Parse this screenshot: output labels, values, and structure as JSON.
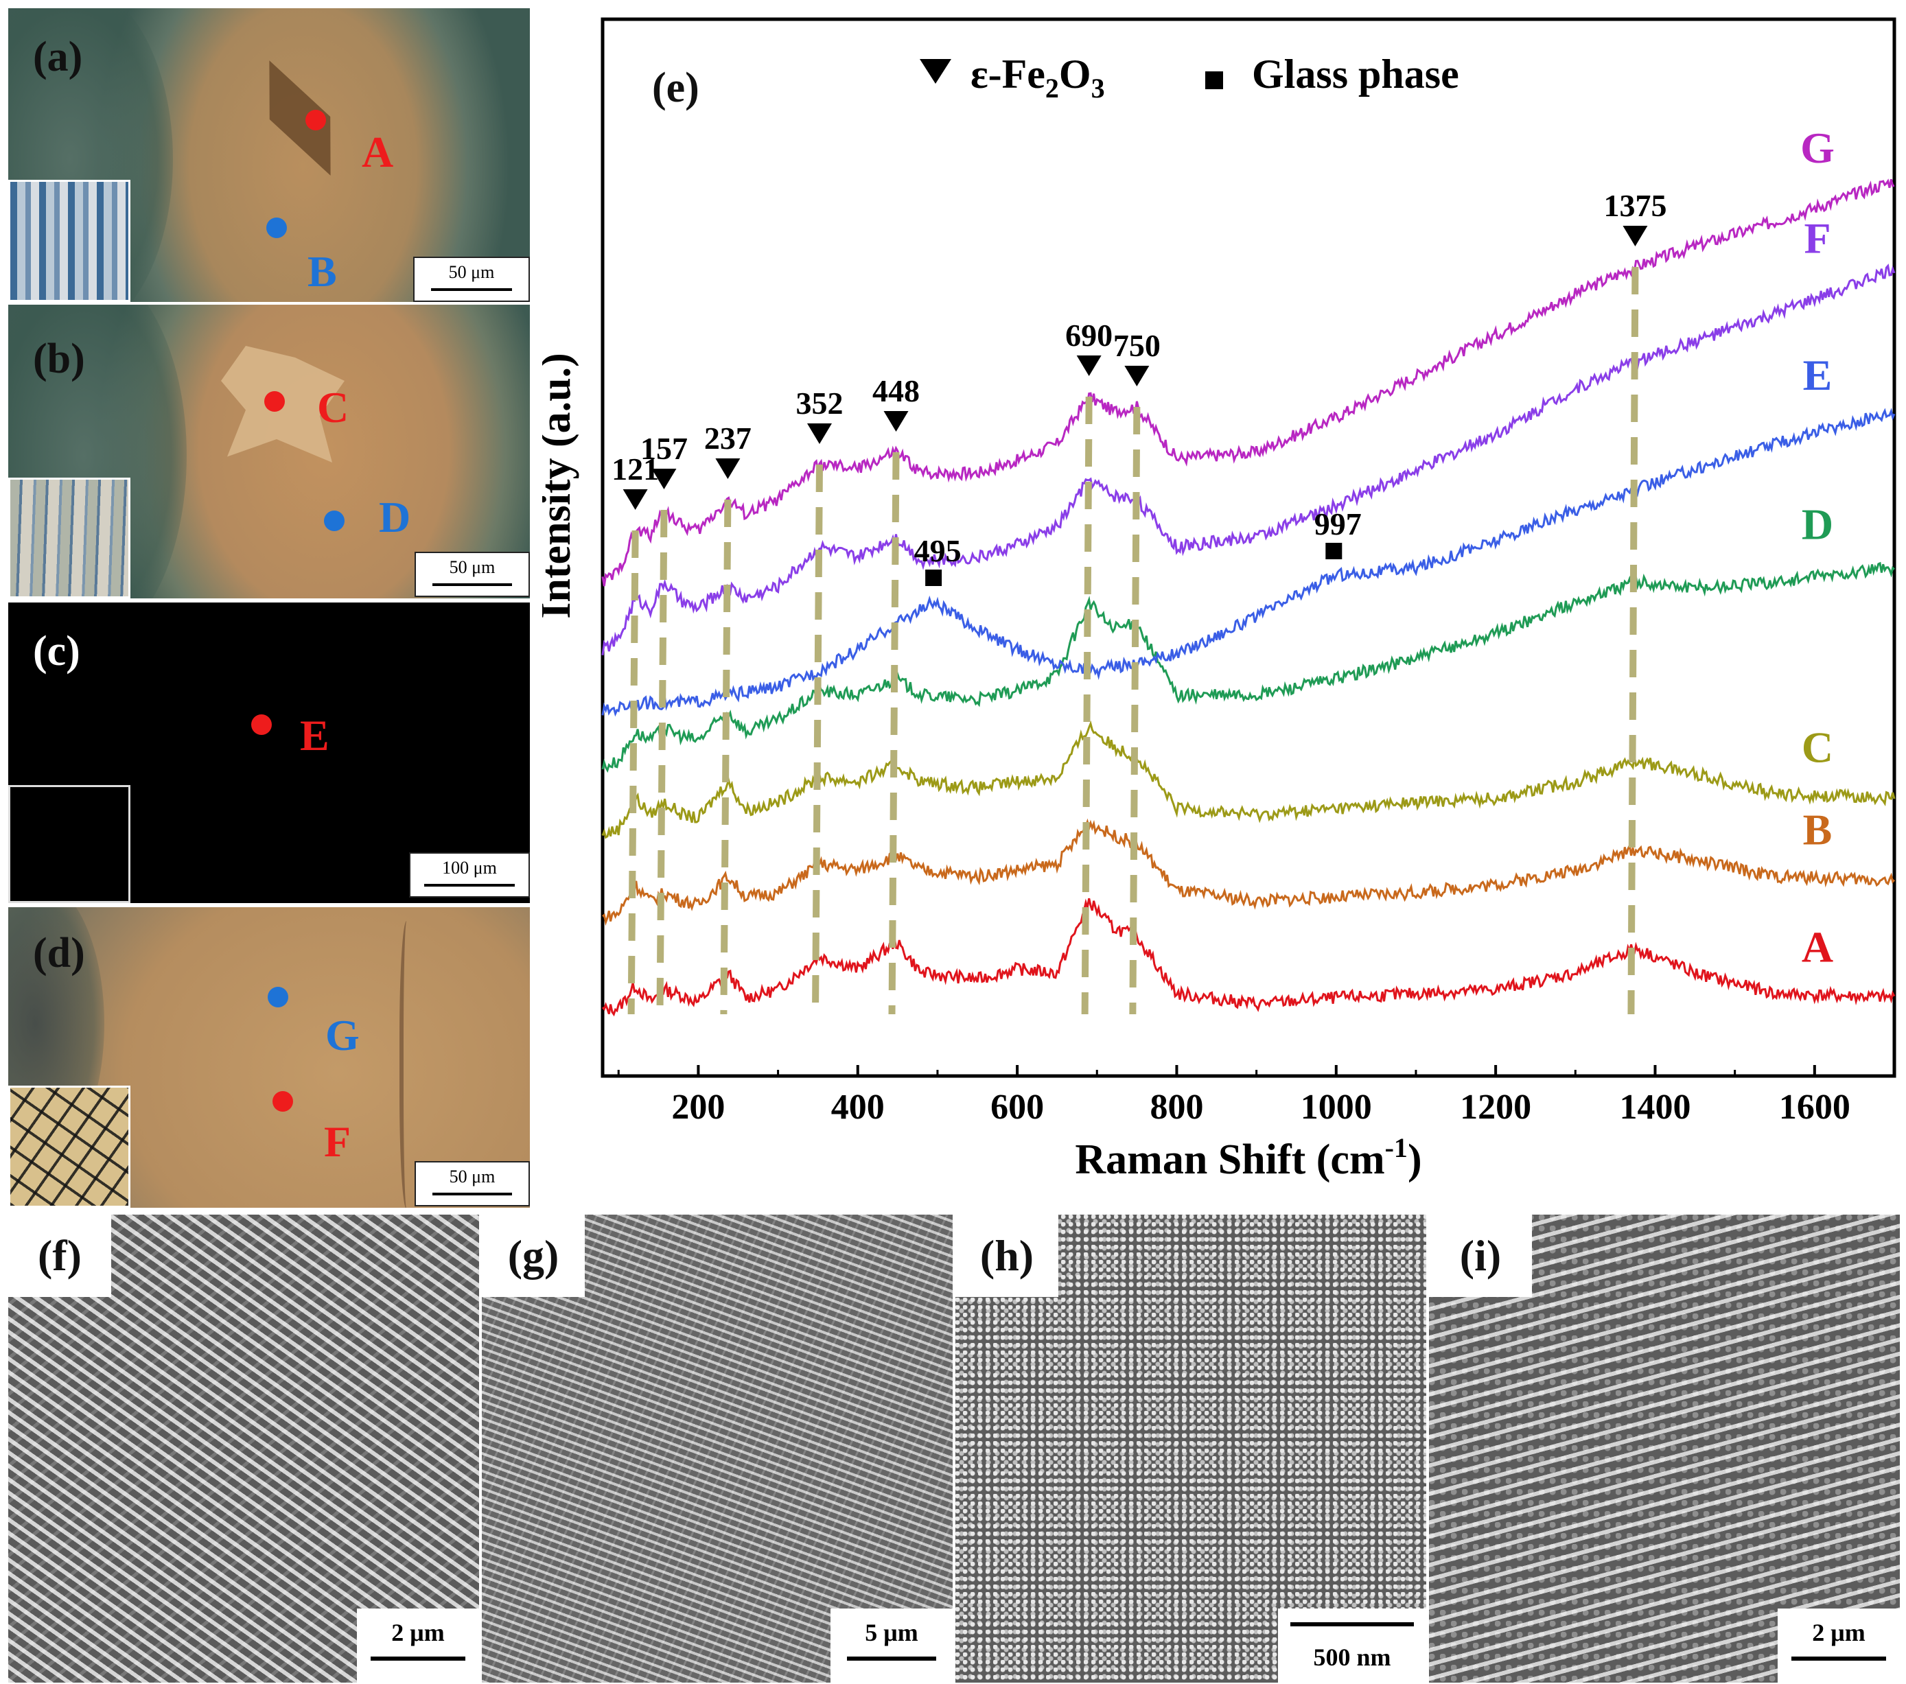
{
  "panels": {
    "a": {
      "label": "(a)",
      "scale": "50 μm",
      "points": [
        {
          "id": "A",
          "color": "#ee1c1c"
        },
        {
          "id": "B",
          "color": "#1e73d6"
        }
      ]
    },
    "b": {
      "label": "(b)",
      "scale": "50 μm",
      "points": [
        {
          "id": "C",
          "color": "#ee1c1c"
        },
        {
          "id": "D",
          "color": "#1e73d6"
        }
      ]
    },
    "c": {
      "label": "(c)",
      "scale": "100 μm",
      "points": [
        {
          "id": "E",
          "color": "#ee1c1c"
        }
      ]
    },
    "d": {
      "label": "(d)",
      "scale": "50 μm",
      "points": [
        {
          "id": "G",
          "color": "#1e73d6"
        },
        {
          "id": "F",
          "color": "#ee1c1c"
        }
      ]
    },
    "f": {
      "label": "(f)",
      "scale": "2 μm"
    },
    "g": {
      "label": "(g)",
      "scale": "5 μm"
    },
    "h": {
      "label": "(h)",
      "scale": "500 nm"
    },
    "i": {
      "label": "(i)",
      "scale": "2 μm"
    }
  },
  "chart_data": {
    "type": "line",
    "panel_label": "(e)",
    "xlabel": "Raman Shift (cm",
    "xlabel_sup": "-1",
    "xlabel_end": ")",
    "ylabel": "Intensity (a.u.)",
    "xlim": [
      80,
      1700
    ],
    "xticks": [
      200,
      400,
      600,
      800,
      1000,
      1200,
      1400,
      1600
    ],
    "legend": {
      "position": "top-center",
      "items": [
        {
          "marker": "triangle-down",
          "text": "ε-Fe",
          "sub": "2",
          "text2": "O",
          "sub2": "3"
        },
        {
          "marker": "square",
          "text": "Glass phase"
        }
      ]
    },
    "peaks_fe2o3": [
      121,
      157,
      237,
      352,
      448,
      690,
      750,
      1375
    ],
    "peaks_glass": [
      495,
      997
    ],
    "series": [
      {
        "name": "A",
        "color": "#e0141c",
        "points": [
          [
            80,
            0.02
          ],
          [
            100,
            0.03
          ],
          [
            121,
            0.14
          ],
          [
            140,
            0.06
          ],
          [
            157,
            0.12
          ],
          [
            180,
            0.09
          ],
          [
            200,
            0.06
          ],
          [
            237,
            0.2
          ],
          [
            260,
            0.08
          ],
          [
            300,
            0.12
          ],
          [
            352,
            0.28
          ],
          [
            400,
            0.22
          ],
          [
            448,
            0.35
          ],
          [
            480,
            0.2
          ],
          [
            550,
            0.17
          ],
          [
            600,
            0.22
          ],
          [
            650,
            0.2
          ],
          [
            690,
            0.55
          ],
          [
            720,
            0.42
          ],
          [
            750,
            0.38
          ],
          [
            800,
            0.1
          ],
          [
            900,
            0.05
          ],
          [
            1000,
            0.08
          ],
          [
            1100,
            0.1
          ],
          [
            1200,
            0.12
          ],
          [
            1300,
            0.2
          ],
          [
            1375,
            0.32
          ],
          [
            1450,
            0.2
          ],
          [
            1550,
            0.1
          ],
          [
            1700,
            0.08
          ]
        ]
      },
      {
        "name": "B",
        "color": "#c9691c",
        "points": [
          [
            80,
            0.02
          ],
          [
            100,
            0.04
          ],
          [
            121,
            0.18
          ],
          [
            140,
            0.1
          ],
          [
            157,
            0.14
          ],
          [
            180,
            0.1
          ],
          [
            200,
            0.08
          ],
          [
            237,
            0.22
          ],
          [
            260,
            0.12
          ],
          [
            300,
            0.14
          ],
          [
            352,
            0.28
          ],
          [
            400,
            0.25
          ],
          [
            448,
            0.32
          ],
          [
            480,
            0.25
          ],
          [
            550,
            0.22
          ],
          [
            600,
            0.25
          ],
          [
            650,
            0.28
          ],
          [
            690,
            0.48
          ],
          [
            720,
            0.42
          ],
          [
            750,
            0.38
          ],
          [
            800,
            0.15
          ],
          [
            900,
            0.1
          ],
          [
            1000,
            0.12
          ],
          [
            1100,
            0.14
          ],
          [
            1200,
            0.18
          ],
          [
            1300,
            0.25
          ],
          [
            1375,
            0.35
          ],
          [
            1450,
            0.3
          ],
          [
            1550,
            0.22
          ],
          [
            1700,
            0.2
          ]
        ]
      },
      {
        "name": "C",
        "color": "#9c9a17",
        "points": [
          [
            80,
            0.02
          ],
          [
            100,
            0.05
          ],
          [
            121,
            0.2
          ],
          [
            140,
            0.12
          ],
          [
            157,
            0.18
          ],
          [
            180,
            0.12
          ],
          [
            200,
            0.1
          ],
          [
            237,
            0.28
          ],
          [
            260,
            0.14
          ],
          [
            300,
            0.18
          ],
          [
            352,
            0.3
          ],
          [
            400,
            0.28
          ],
          [
            448,
            0.36
          ],
          [
            480,
            0.28
          ],
          [
            550,
            0.25
          ],
          [
            600,
            0.28
          ],
          [
            650,
            0.3
          ],
          [
            690,
            0.55
          ],
          [
            720,
            0.45
          ],
          [
            750,
            0.4
          ],
          [
            800,
            0.15
          ],
          [
            900,
            0.12
          ],
          [
            1000,
            0.15
          ],
          [
            1100,
            0.18
          ],
          [
            1200,
            0.2
          ],
          [
            1300,
            0.28
          ],
          [
            1375,
            0.38
          ],
          [
            1450,
            0.32
          ],
          [
            1550,
            0.22
          ],
          [
            1700,
            0.2
          ]
        ]
      },
      {
        "name": "D",
        "color": "#1f9b55",
        "points": [
          [
            80,
            0.05
          ],
          [
            100,
            0.08
          ],
          [
            121,
            0.22
          ],
          [
            140,
            0.18
          ],
          [
            157,
            0.24
          ],
          [
            180,
            0.2
          ],
          [
            200,
            0.18
          ],
          [
            237,
            0.32
          ],
          [
            260,
            0.22
          ],
          [
            300,
            0.28
          ],
          [
            352,
            0.42
          ],
          [
            400,
            0.4
          ],
          [
            448,
            0.48
          ],
          [
            480,
            0.4
          ],
          [
            550,
            0.38
          ],
          [
            600,
            0.42
          ],
          [
            650,
            0.5
          ],
          [
            690,
            0.85
          ],
          [
            720,
            0.72
          ],
          [
            750,
            0.75
          ],
          [
            800,
            0.4
          ],
          [
            900,
            0.4
          ],
          [
            1000,
            0.48
          ],
          [
            1100,
            0.58
          ],
          [
            1200,
            0.7
          ],
          [
            1300,
            0.85
          ],
          [
            1375,
            0.95
          ],
          [
            1450,
            0.92
          ],
          [
            1550,
            0.95
          ],
          [
            1700,
            1.02
          ]
        ]
      },
      {
        "name": "E",
        "color": "#3a5ee6",
        "points": [
          [
            80,
            0.02
          ],
          [
            100,
            0.04
          ],
          [
            121,
            0.06
          ],
          [
            157,
            0.06
          ],
          [
            200,
            0.07
          ],
          [
            237,
            0.1
          ],
          [
            300,
            0.14
          ],
          [
            352,
            0.22
          ],
          [
            400,
            0.32
          ],
          [
            448,
            0.45
          ],
          [
            495,
            0.55
          ],
          [
            550,
            0.42
          ],
          [
            600,
            0.32
          ],
          [
            650,
            0.25
          ],
          [
            700,
            0.22
          ],
          [
            800,
            0.3
          ],
          [
            900,
            0.48
          ],
          [
            997,
            0.68
          ],
          [
            1100,
            0.72
          ],
          [
            1200,
            0.85
          ],
          [
            1300,
            1.0
          ],
          [
            1375,
            1.1
          ],
          [
            1450,
            1.2
          ],
          [
            1550,
            1.32
          ],
          [
            1700,
            1.48
          ]
        ]
      },
      {
        "name": "F",
        "color": "#8a3ee8",
        "points": [
          [
            80,
            0.05
          ],
          [
            100,
            0.1
          ],
          [
            121,
            0.3
          ],
          [
            140,
            0.25
          ],
          [
            157,
            0.38
          ],
          [
            180,
            0.28
          ],
          [
            200,
            0.25
          ],
          [
            237,
            0.36
          ],
          [
            260,
            0.3
          ],
          [
            300,
            0.36
          ],
          [
            352,
            0.55
          ],
          [
            400,
            0.5
          ],
          [
            448,
            0.6
          ],
          [
            480,
            0.48
          ],
          [
            550,
            0.5
          ],
          [
            600,
            0.56
          ],
          [
            650,
            0.65
          ],
          [
            690,
            0.88
          ],
          [
            720,
            0.8
          ],
          [
            750,
            0.78
          ],
          [
            800,
            0.55
          ],
          [
            900,
            0.6
          ],
          [
            1000,
            0.75
          ],
          [
            1100,
            0.92
          ],
          [
            1200,
            1.1
          ],
          [
            1300,
            1.32
          ],
          [
            1375,
            1.45
          ],
          [
            1450,
            1.55
          ],
          [
            1550,
            1.68
          ],
          [
            1700,
            1.9
          ]
        ]
      },
      {
        "name": "G",
        "color": "#b827c2",
        "points": [
          [
            80,
            0.05
          ],
          [
            100,
            0.1
          ],
          [
            121,
            0.3
          ],
          [
            140,
            0.28
          ],
          [
            157,
            0.4
          ],
          [
            180,
            0.32
          ],
          [
            200,
            0.3
          ],
          [
            237,
            0.45
          ],
          [
            260,
            0.38
          ],
          [
            300,
            0.45
          ],
          [
            352,
            0.62
          ],
          [
            400,
            0.6
          ],
          [
            448,
            0.68
          ],
          [
            480,
            0.58
          ],
          [
            550,
            0.58
          ],
          [
            600,
            0.64
          ],
          [
            650,
            0.72
          ],
          [
            690,
            0.95
          ],
          [
            720,
            0.88
          ],
          [
            750,
            0.9
          ],
          [
            800,
            0.65
          ],
          [
            900,
            0.68
          ],
          [
            1000,
            0.85
          ],
          [
            1100,
            1.05
          ],
          [
            1200,
            1.25
          ],
          [
            1300,
            1.45
          ],
          [
            1375,
            1.58
          ],
          [
            1450,
            1.68
          ],
          [
            1550,
            1.8
          ],
          [
            1700,
            2.0
          ]
        ]
      }
    ],
    "offsets": [
      0.0,
      0.45,
      0.85,
      1.15,
      1.45,
      1.72,
      2.05
    ]
  }
}
